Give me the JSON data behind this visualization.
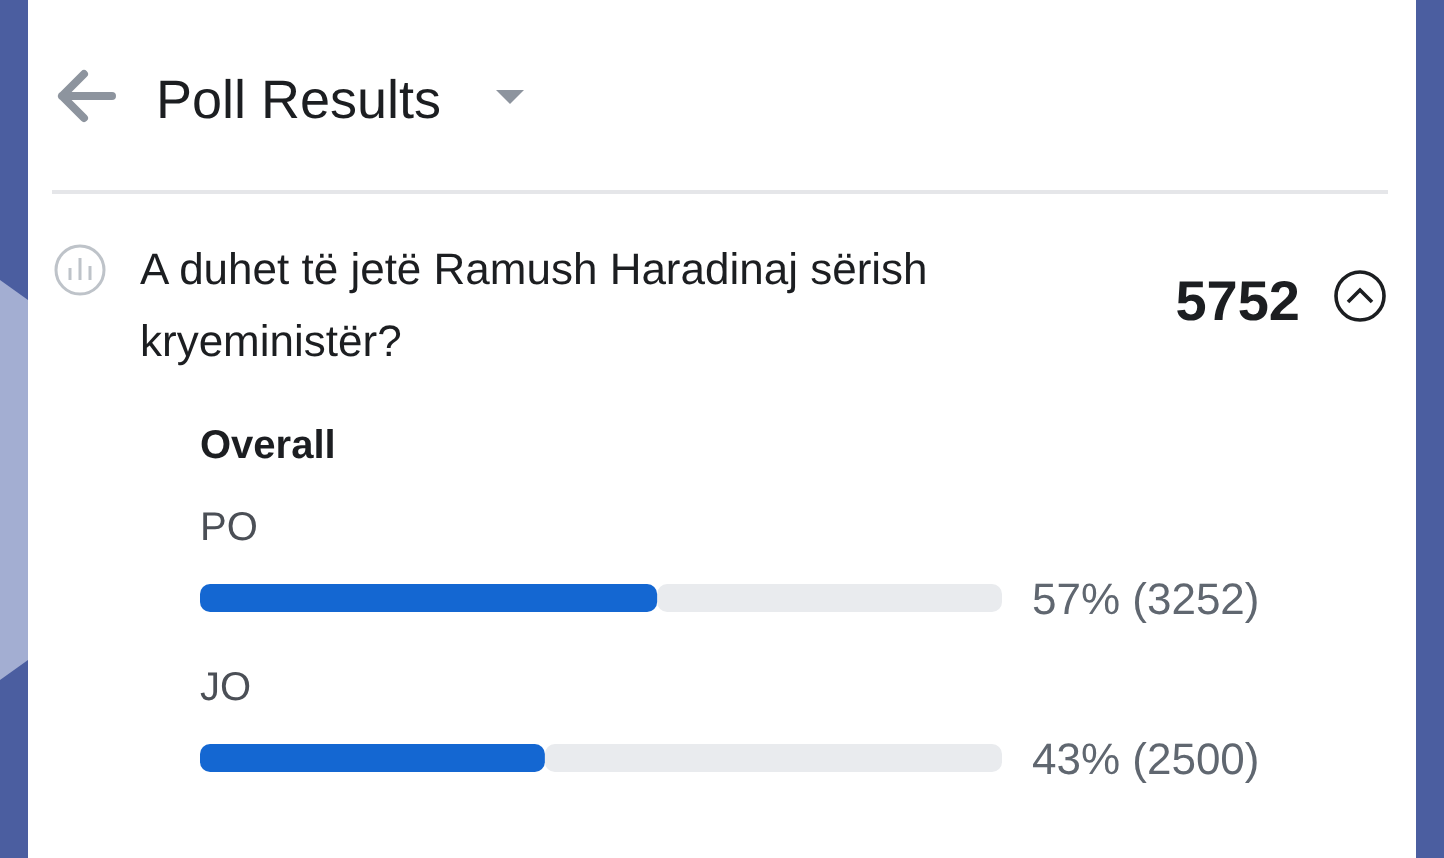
{
  "chart_data": {
    "type": "bar",
    "orientation": "horizontal",
    "title": "Poll Results",
    "subtitle": "A duhet të jetë Ramush Haradinaj sërish kryeministër?",
    "annotations": [
      "5752",
      "Overall"
    ],
    "categories": [
      "PO",
      "JO"
    ],
    "values": [
      57,
      43
    ],
    "value_labels": [
      "57% (3252)",
      "43% (2500)"
    ],
    "color": "#1467d2",
    "xlim": [
      0,
      100
    ],
    "tick_labels": false
  }
}
